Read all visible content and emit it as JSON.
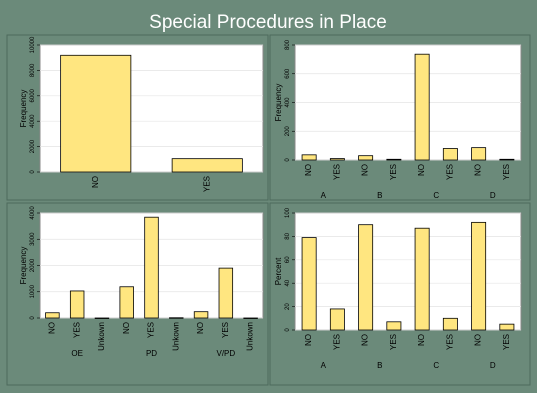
{
  "title": "Special Procedures in Place",
  "chart_data": [
    {
      "type": "bar",
      "ylabel": "Frequency",
      "categories": [
        "NO",
        "YES"
      ],
      "values": [
        9190,
        1050
      ],
      "ylim": [
        0,
        10000
      ],
      "yticks": [
        0,
        2000,
        4000,
        6000,
        8000,
        10000
      ],
      "grid": true,
      "color": "#ffe680"
    },
    {
      "type": "bar",
      "ylabel": "Frequency",
      "groups": [
        {
          "name": "A",
          "categories": [
            "NO",
            "YES"
          ],
          "values": [
            36,
            10
          ]
        },
        {
          "name": "B",
          "categories": [
            "NO",
            "YES"
          ],
          "values": [
            30,
            5
          ]
        },
        {
          "name": "C",
          "categories": [
            "NO",
            "YES"
          ],
          "values": [
            736,
            80
          ]
        },
        {
          "name": "D",
          "categories": [
            "NO",
            "YES"
          ],
          "values": [
            86,
            5
          ]
        }
      ],
      "ylim": [
        0,
        800
      ],
      "yticks": [
        0,
        200,
        400,
        600,
        800
      ],
      "grid": true,
      "color": "#ffe680"
    },
    {
      "type": "bar",
      "ylabel": "Frequency",
      "groups": [
        {
          "name": "OE",
          "categories": [
            "NO",
            "YES",
            "Unkown"
          ],
          "values": [
            200,
            1030,
            0
          ]
        },
        {
          "name": "PD",
          "categories": [
            "NO",
            "YES",
            "Unkown"
          ],
          "values": [
            1190,
            3840,
            10
          ]
        },
        {
          "name": "V/PD",
          "categories": [
            "NO",
            "YES",
            "Unkown"
          ],
          "values": [
            240,
            1900,
            0
          ]
        }
      ],
      "ylim": [
        0,
        4000
      ],
      "yticks": [
        0,
        1000,
        2000,
        3000,
        4000
      ],
      "grid": true,
      "color": "#ffe680"
    },
    {
      "type": "bar",
      "ylabel": "Percent",
      "groups": [
        {
          "name": "A",
          "categories": [
            "NO",
            "YES"
          ],
          "values": [
            79,
            18
          ]
        },
        {
          "name": "B",
          "categories": [
            "NO",
            "YES"
          ],
          "values": [
            90,
            7
          ]
        },
        {
          "name": "C",
          "categories": [
            "NO",
            "YES"
          ],
          "values": [
            87,
            10
          ]
        },
        {
          "name": "D",
          "categories": [
            "NO",
            "YES"
          ],
          "values": [
            92,
            5
          ]
        }
      ],
      "ylim": [
        0,
        100
      ],
      "yticks": [
        0,
        20,
        40,
        60,
        80,
        100
      ],
      "grid": true,
      "color": "#ffe680"
    }
  ]
}
